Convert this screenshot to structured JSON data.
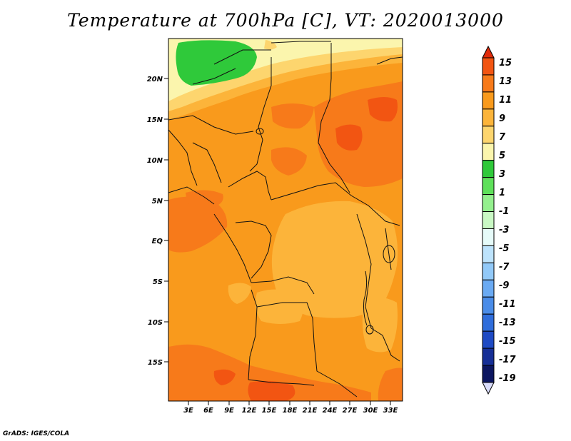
{
  "title": "Temperature at 700hPa [C], VT: 2020013000",
  "credit": "GrADS: IGES/COLA",
  "map": {
    "lat_ticks": [
      "20N",
      "15N",
      "10N",
      "5N",
      "EQ",
      "5S",
      "10S",
      "15S"
    ],
    "lon_ticks": [
      "3E",
      "6E",
      "9E",
      "12E",
      "15E",
      "18E",
      "21E",
      "24E",
      "27E",
      "30E",
      "33E"
    ]
  },
  "colorbar": {
    "labels": [
      "15",
      "13",
      "11",
      "9",
      "7",
      "5",
      "3",
      "1",
      "-1",
      "-3",
      "-5",
      "-7",
      "-9",
      "-11",
      "-13",
      "-15",
      "-17",
      "-19"
    ],
    "colors": [
      "#e02a0a",
      "#f25512",
      "#f77a1a",
      "#f99a1c",
      "#fcb43a",
      "#fdd56e",
      "#fbf5ad",
      "#2fc93a",
      "#5ee05a",
      "#94f08e",
      "#c9f8c4",
      "#e6fbf9",
      "#bde3fc",
      "#92c9f8",
      "#6aaaf3",
      "#4a8ce8",
      "#2f6ddb",
      "#1e4ac4",
      "#162f96",
      "#0c1660",
      "#d9dcfb"
    ]
  }
}
